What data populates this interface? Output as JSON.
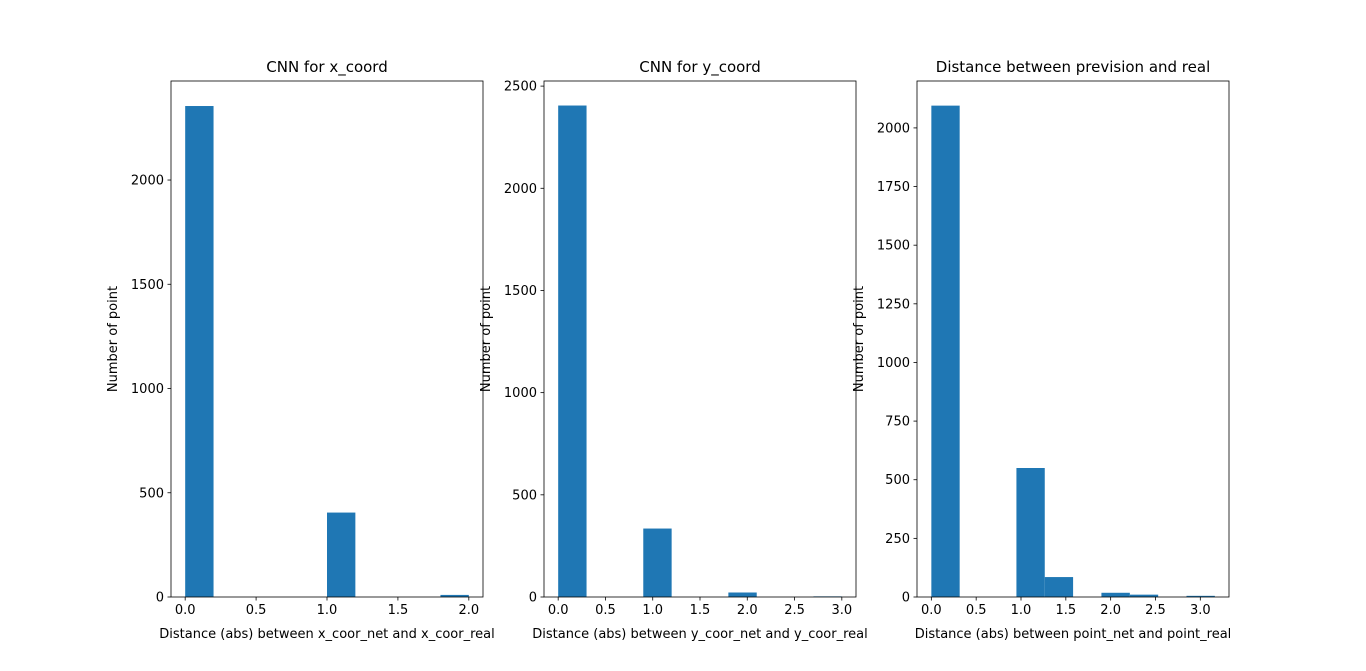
{
  "chart_data": [
    {
      "type": "bar",
      "title": "CNN for x_coord",
      "xlabel": "Distance (abs) between x_coor_net and x_coor_real",
      "ylabel": "Number of point",
      "xlim": [
        -0.1,
        2.1
      ],
      "ylim": [
        0,
        2475
      ],
      "xticks": [
        0.0,
        0.5,
        1.0,
        1.5,
        2.0
      ],
      "xtick_labels": [
        "0.0",
        "0.5",
        "1.0",
        "1.5",
        "2.0"
      ],
      "yticks": [
        0,
        500,
        1000,
        1500,
        2000
      ],
      "ytick_labels": [
        "0",
        "500",
        "1000",
        "1500",
        "2000"
      ],
      "bins": [
        {
          "x0": 0.0,
          "x1": 0.2,
          "count": 2355
        },
        {
          "x0": 0.2,
          "x1": 0.4,
          "count": 0
        },
        {
          "x0": 0.4,
          "x1": 0.6,
          "count": 0
        },
        {
          "x0": 0.6,
          "x1": 0.8,
          "count": 0
        },
        {
          "x0": 0.8,
          "x1": 1.0,
          "count": 0
        },
        {
          "x0": 1.0,
          "x1": 1.2,
          "count": 405
        },
        {
          "x0": 1.2,
          "x1": 1.4,
          "count": 0
        },
        {
          "x0": 1.4,
          "x1": 1.6,
          "count": 0
        },
        {
          "x0": 1.6,
          "x1": 1.8,
          "count": 0
        },
        {
          "x0": 1.8,
          "x1": 2.0,
          "count": 10
        }
      ],
      "color": "#1f77b4",
      "grid": false
    },
    {
      "type": "bar",
      "title": "CNN for y_coord",
      "xlabel": "Distance (abs) between y_coor_net and y_coor_real",
      "ylabel": "Number of point",
      "xlim": [
        -0.15,
        3.15
      ],
      "ylim": [
        0,
        2525
      ],
      "xticks": [
        0.0,
        0.5,
        1.0,
        1.5,
        2.0,
        2.5,
        3.0
      ],
      "xtick_labels": [
        "0.0",
        "0.5",
        "1.0",
        "1.5",
        "2.0",
        "2.5",
        "3.0"
      ],
      "yticks": [
        0,
        500,
        1000,
        1500,
        2000,
        2500
      ],
      "ytick_labels": [
        "0",
        "500",
        "1000",
        "1500",
        "2000",
        "2500"
      ],
      "bins": [
        {
          "x0": 0.0,
          "x1": 0.3,
          "count": 2405
        },
        {
          "x0": 0.3,
          "x1": 0.6,
          "count": 0
        },
        {
          "x0": 0.6,
          "x1": 0.9,
          "count": 0
        },
        {
          "x0": 0.9,
          "x1": 1.2,
          "count": 335
        },
        {
          "x0": 1.2,
          "x1": 1.5,
          "count": 0
        },
        {
          "x0": 1.5,
          "x1": 1.8,
          "count": 0
        },
        {
          "x0": 1.8,
          "x1": 2.1,
          "count": 22
        },
        {
          "x0": 2.1,
          "x1": 2.4,
          "count": 0
        },
        {
          "x0": 2.4,
          "x1": 2.7,
          "count": 0
        },
        {
          "x0": 2.7,
          "x1": 3.0,
          "count": 3
        }
      ],
      "color": "#1f77b4",
      "grid": false
    },
    {
      "type": "bar",
      "title": "Distance between prevision and real",
      "xlabel": "Distance (abs) between point_net and point_real",
      "ylabel": "Number of point",
      "xlim": [
        -0.16,
        3.32
      ],
      "ylim": [
        0,
        2200
      ],
      "xticks": [
        0.0,
        0.5,
        1.0,
        1.5,
        2.0,
        2.5,
        3.0
      ],
      "xtick_labels": [
        "0.0",
        "0.5",
        "1.0",
        "1.5",
        "2.0",
        "2.5",
        "3.0"
      ],
      "yticks": [
        0,
        250,
        500,
        750,
        1000,
        1250,
        1500,
        1750,
        2000
      ],
      "ytick_labels": [
        "0",
        "250",
        "500",
        "750",
        "1000",
        "1250",
        "1500",
        "1750",
        "2000"
      ],
      "bins": [
        {
          "x0": 0.0,
          "x1": 0.316,
          "count": 2095
        },
        {
          "x0": 0.316,
          "x1": 0.632,
          "count": 0
        },
        {
          "x0": 0.632,
          "x1": 0.949,
          "count": 0
        },
        {
          "x0": 0.949,
          "x1": 1.265,
          "count": 550
        },
        {
          "x0": 1.265,
          "x1": 1.581,
          "count": 85
        },
        {
          "x0": 1.581,
          "x1": 1.897,
          "count": 0
        },
        {
          "x0": 1.897,
          "x1": 2.214,
          "count": 18
        },
        {
          "x0": 2.214,
          "x1": 2.53,
          "count": 10
        },
        {
          "x0": 2.53,
          "x1": 2.846,
          "count": 0
        },
        {
          "x0": 2.846,
          "x1": 3.162,
          "count": 5
        }
      ],
      "color": "#1f77b4",
      "grid": false
    }
  ]
}
